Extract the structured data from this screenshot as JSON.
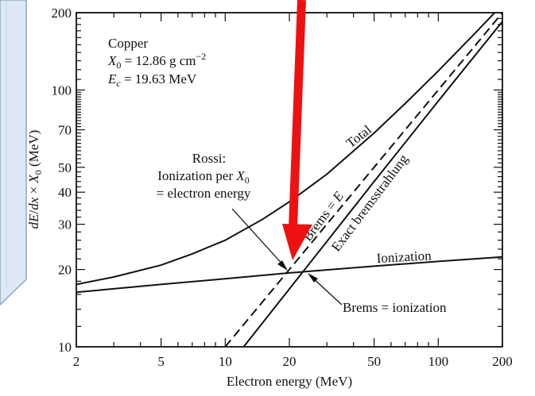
{
  "colors": {
    "panel_fill": "#dfe9f3",
    "panel_stroke": "#8aa7c2",
    "arrow": "#ee1111",
    "ink": "#111111"
  },
  "chart_data": {
    "type": "line",
    "xscale": "log",
    "yscale": "log",
    "xlim": [
      2,
      200
    ],
    "ylim": [
      10,
      200
    ],
    "xlabel": "Electron energy (MeV)",
    "ylabel": "dE/dx × X0 (MeV)",
    "xticks": [
      2,
      5,
      10,
      20,
      50,
      100,
      200
    ],
    "yticks": [
      10,
      20,
      30,
      40,
      50,
      70,
      100,
      200
    ],
    "grid": false,
    "info": {
      "material": "Copper",
      "x0": "X0 = 12.86 g cm−2",
      "ec": "Ec = 19.63 MeV"
    },
    "series": [
      {
        "name": "Total",
        "style": "solid",
        "x": [
          2,
          3,
          5,
          7,
          10,
          15,
          20,
          30,
          50,
          70,
          100,
          150,
          200
        ],
        "y": [
          17.5,
          18.7,
          20.8,
          23,
          26,
          31.4,
          36.7,
          47,
          68,
          88.6,
          118.6,
          167.5,
          215
        ]
      },
      {
        "name": "Ionization",
        "style": "solid",
        "x": [
          2,
          5,
          10,
          20,
          50,
          100,
          200
        ],
        "y": [
          16.3,
          17.5,
          18.4,
          19.4,
          20.6,
          21.5,
          22.4
        ]
      },
      {
        "name": "Brems = E",
        "style": "dashed",
        "x": [
          10,
          20,
          50,
          100,
          200
        ],
        "y": [
          10,
          20,
          50,
          100,
          200
        ]
      },
      {
        "name": "Exact bremsstrahlung",
        "style": "solid",
        "x": [
          12.2,
          20,
          30,
          50,
          100,
          200
        ],
        "y": [
          10,
          16.8,
          25.7,
          44,
          90.5,
          185
        ]
      }
    ],
    "annotations": [
      {
        "id": "rossi",
        "lines": [
          "Rossi:",
          "Ionization per X0",
          "= electron energy"
        ]
      },
      {
        "id": "brems-ionization",
        "text": "Brems = ionization"
      }
    ]
  }
}
